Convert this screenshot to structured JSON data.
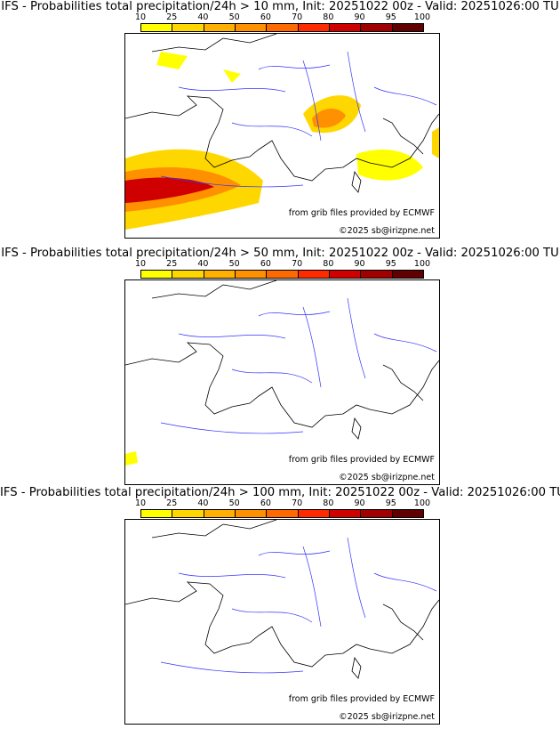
{
  "panels": [
    {
      "title": "IFS - Probabilities total precipitation/24h > 10 mm, Init: 20251022 00z - Valid: 20251026:00 TU",
      "threshold_mm": 10
    },
    {
      "title": "IFS - Probabilities total precipitation/24h > 50 mm, Init: 20251022 00z - Valid: 20251026:00 TU",
      "threshold_mm": 50
    },
    {
      "title": "IFS - Probabilities total precipitation/24h > 100 mm, Init: 20251022 00z - Valid: 20251026:00 TU",
      "threshold_mm": 100
    }
  ],
  "colorbar": {
    "ticks": [
      "10",
      "25",
      "40",
      "50",
      "60",
      "70",
      "80",
      "90",
      "95",
      "100"
    ],
    "colors": [
      "#ffff00",
      "#ffd700",
      "#ffb000",
      "#ff9000",
      "#ff6a00",
      "#ff2a00",
      "#d00000",
      "#a00000",
      "#600000"
    ]
  },
  "credits": {
    "source": "from grib files provided by ECMWF",
    "copyright": "©2025 sb@irizpne.net"
  }
}
